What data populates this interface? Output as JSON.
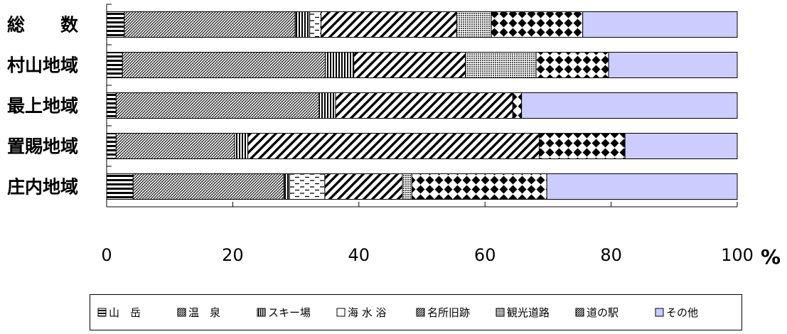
{
  "chart_data": {
    "type": "bar",
    "orientation": "horizontal",
    "stacked": "percent",
    "categories": [
      "総　　数",
      "村山地域",
      "最上地域",
      "置賜地域",
      "庄内地域"
    ],
    "series": [
      {
        "name": "山　岳",
        "values": [
          2.8,
          2.5,
          1.5,
          1.5,
          4.2
        ]
      },
      {
        "name": "温　泉",
        "values": [
          27.1,
          32.2,
          32.2,
          18.8,
          23.9
        ]
      },
      {
        "name": "スキー場",
        "values": [
          2.3,
          4.5,
          2.6,
          2.1,
          0.9
        ]
      },
      {
        "name": "海 水 浴",
        "values": [
          1.8,
          0.0,
          0.0,
          0.0,
          5.6
        ]
      },
      {
        "name": "名所旧跡",
        "values": [
          21.5,
          17.7,
          28.1,
          46.2,
          12.3
        ]
      },
      {
        "name": "観光道路",
        "values": [
          5.5,
          11.2,
          0.0,
          0.0,
          1.5
        ]
      },
      {
        "name": "道の駅",
        "values": [
          14.5,
          11.5,
          1.4,
          13.6,
          21.4
        ]
      },
      {
        "name": "その他",
        "values": [
          24.5,
          20.4,
          34.2,
          17.8,
          30.2
        ]
      }
    ],
    "colors": {
      "その他": "#ccccff",
      "outline": "#000000"
    },
    "xlim": [
      0,
      100
    ],
    "x_ticks": [
      "0",
      "20",
      "40",
      "60",
      "80",
      "100"
    ],
    "unit": "%",
    "legend_position": "bottom",
    "grid": false
  }
}
